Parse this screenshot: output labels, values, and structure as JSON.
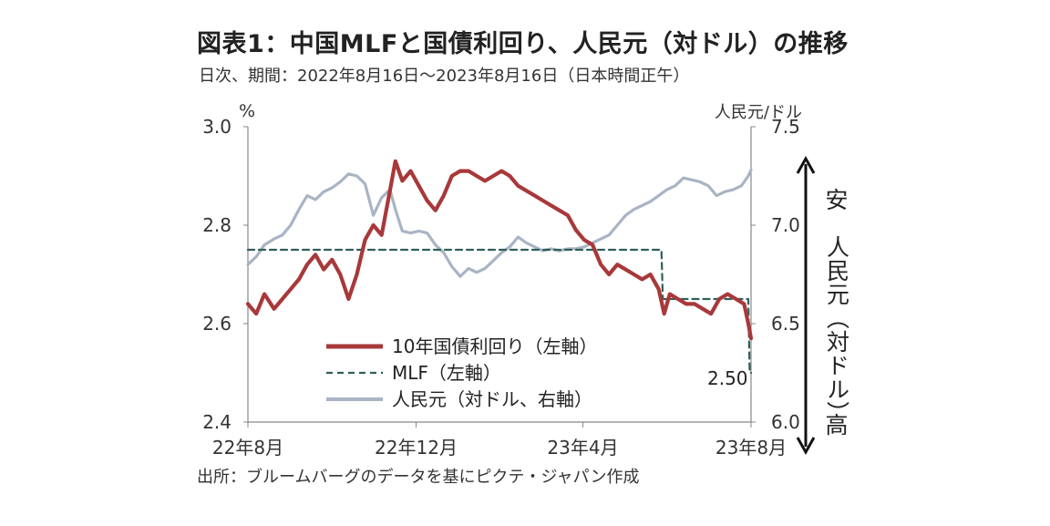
{
  "title": "図表1：中国MLFと国債利回り、人民元（対ドル）の推移",
  "subtitle": "日次、期間：2022年8月16日～2023年8月16日（日本時間正午）",
  "source": "出所：ブルームバーグのデータを基にピクテ・ジャパン作成",
  "colors": {
    "yield": "#a8383a",
    "mlf": "#2f5f5a",
    "cny": "#a9b4c4",
    "axis": "#888888"
  },
  "chart_data": {
    "type": "line",
    "left_axis": {
      "unit": "%",
      "min": 2.4,
      "max": 3.0,
      "ticks": [
        "2.4",
        "2.6",
        "2.8",
        "3.0"
      ]
    },
    "right_axis": {
      "unit": "人民元/ドル",
      "min": 6.0,
      "max": 7.5,
      "ticks": [
        "6.0",
        "6.5",
        "7.0",
        "7.5"
      ]
    },
    "x_ticks": [
      "22年8月",
      "22年12月",
      "23年4月",
      "23年8月"
    ],
    "x_range": [
      "2022-08-16",
      "2023-08-16"
    ],
    "x_tick_dates": [
      "2022-08-16",
      "2022-12-16",
      "2023-04-16",
      "2023-08-16"
    ],
    "right_note": {
      "top": "安",
      "bottom": "高",
      "middle": "人民元（対ドル）"
    },
    "end_label": "2.50",
    "legend": [
      "10年国債利回り（左軸）",
      "MLF（左軸）",
      "人民元（対ドル、右軸）"
    ],
    "series": [
      {
        "name": "10年国債利回り（左軸）",
        "axis": "left",
        "style": "solid",
        "points": [
          [
            "2022-08-16",
            2.64
          ],
          [
            "2022-08-22",
            2.62
          ],
          [
            "2022-08-28",
            2.66
          ],
          [
            "2022-09-04",
            2.63
          ],
          [
            "2022-09-10",
            2.65
          ],
          [
            "2022-09-16",
            2.67
          ],
          [
            "2022-09-22",
            2.69
          ],
          [
            "2022-09-28",
            2.72
          ],
          [
            "2022-10-04",
            2.74
          ],
          [
            "2022-10-10",
            2.71
          ],
          [
            "2022-10-16",
            2.73
          ],
          [
            "2022-10-22",
            2.7
          ],
          [
            "2022-10-28",
            2.65
          ],
          [
            "2022-11-03",
            2.7
          ],
          [
            "2022-11-09",
            2.77
          ],
          [
            "2022-11-15",
            2.8
          ],
          [
            "2022-11-21",
            2.78
          ],
          [
            "2022-11-27",
            2.87
          ],
          [
            "2022-12-01",
            2.93
          ],
          [
            "2022-12-06",
            2.89
          ],
          [
            "2022-12-12",
            2.91
          ],
          [
            "2022-12-18",
            2.88
          ],
          [
            "2022-12-24",
            2.85
          ],
          [
            "2022-12-30",
            2.83
          ],
          [
            "2023-01-05",
            2.86
          ],
          [
            "2023-01-11",
            2.9
          ],
          [
            "2023-01-17",
            2.91
          ],
          [
            "2023-01-23",
            2.91
          ],
          [
            "2023-01-29",
            2.9
          ],
          [
            "2023-02-04",
            2.89
          ],
          [
            "2023-02-10",
            2.9
          ],
          [
            "2023-02-16",
            2.91
          ],
          [
            "2023-02-22",
            2.9
          ],
          [
            "2023-02-28",
            2.88
          ],
          [
            "2023-03-06",
            2.87
          ],
          [
            "2023-03-12",
            2.86
          ],
          [
            "2023-03-18",
            2.85
          ],
          [
            "2023-03-24",
            2.84
          ],
          [
            "2023-03-30",
            2.83
          ],
          [
            "2023-04-05",
            2.82
          ],
          [
            "2023-04-11",
            2.79
          ],
          [
            "2023-04-17",
            2.77
          ],
          [
            "2023-04-23",
            2.76
          ],
          [
            "2023-04-29",
            2.72
          ],
          [
            "2023-05-05",
            2.7
          ],
          [
            "2023-05-11",
            2.72
          ],
          [
            "2023-05-17",
            2.71
          ],
          [
            "2023-05-23",
            2.7
          ],
          [
            "2023-05-29",
            2.69
          ],
          [
            "2023-06-04",
            2.7
          ],
          [
            "2023-06-10",
            2.67
          ],
          [
            "2023-06-14",
            2.62
          ],
          [
            "2023-06-18",
            2.66
          ],
          [
            "2023-06-24",
            2.65
          ],
          [
            "2023-06-30",
            2.64
          ],
          [
            "2023-07-06",
            2.64
          ],
          [
            "2023-07-12",
            2.63
          ],
          [
            "2023-07-18",
            2.62
          ],
          [
            "2023-07-24",
            2.65
          ],
          [
            "2023-07-30",
            2.66
          ],
          [
            "2023-08-05",
            2.65
          ],
          [
            "2023-08-11",
            2.64
          ],
          [
            "2023-08-14",
            2.6
          ],
          [
            "2023-08-16",
            2.57
          ]
        ]
      },
      {
        "name": "MLF（左軸）",
        "axis": "left",
        "style": "dashed",
        "points": [
          [
            "2022-08-16",
            2.75
          ],
          [
            "2023-06-12",
            2.75
          ],
          [
            "2023-06-13",
            2.65
          ],
          [
            "2023-08-14",
            2.65
          ],
          [
            "2023-08-15",
            2.5
          ],
          [
            "2023-08-16",
            2.5
          ]
        ]
      },
      {
        "name": "人民元（対ドル、右軸）",
        "axis": "right",
        "style": "solid",
        "points": [
          [
            "2022-08-16",
            6.8
          ],
          [
            "2022-08-22",
            6.84
          ],
          [
            "2022-08-28",
            6.9
          ],
          [
            "2022-09-04",
            6.93
          ],
          [
            "2022-09-10",
            6.95
          ],
          [
            "2022-09-16",
            7.0
          ],
          [
            "2022-09-22",
            7.08
          ],
          [
            "2022-09-28",
            7.15
          ],
          [
            "2022-10-04",
            7.13
          ],
          [
            "2022-10-10",
            7.17
          ],
          [
            "2022-10-16",
            7.19
          ],
          [
            "2022-10-22",
            7.22
          ],
          [
            "2022-10-28",
            7.26
          ],
          [
            "2022-11-03",
            7.25
          ],
          [
            "2022-11-09",
            7.21
          ],
          [
            "2022-11-15",
            7.05
          ],
          [
            "2022-11-21",
            7.14
          ],
          [
            "2022-11-27",
            7.18
          ],
          [
            "2022-12-01",
            7.08
          ],
          [
            "2022-12-06",
            6.97
          ],
          [
            "2022-12-12",
            6.96
          ],
          [
            "2022-12-18",
            6.97
          ],
          [
            "2022-12-24",
            6.96
          ],
          [
            "2022-12-30",
            6.9
          ],
          [
            "2023-01-05",
            6.86
          ],
          [
            "2023-01-11",
            6.79
          ],
          [
            "2023-01-17",
            6.74
          ],
          [
            "2023-01-23",
            6.78
          ],
          [
            "2023-01-29",
            6.76
          ],
          [
            "2023-02-04",
            6.78
          ],
          [
            "2023-02-10",
            6.82
          ],
          [
            "2023-02-16",
            6.86
          ],
          [
            "2023-02-22",
            6.89
          ],
          [
            "2023-02-28",
            6.94
          ],
          [
            "2023-03-06",
            6.91
          ],
          [
            "2023-03-12",
            6.89
          ],
          [
            "2023-03-18",
            6.87
          ],
          [
            "2023-03-24",
            6.88
          ],
          [
            "2023-03-30",
            6.87
          ],
          [
            "2023-04-05",
            6.88
          ],
          [
            "2023-04-11",
            6.88
          ],
          [
            "2023-04-17",
            6.89
          ],
          [
            "2023-04-23",
            6.91
          ],
          [
            "2023-04-29",
            6.93
          ],
          [
            "2023-05-05",
            6.95
          ],
          [
            "2023-05-11",
            7.0
          ],
          [
            "2023-05-17",
            7.05
          ],
          [
            "2023-05-23",
            7.08
          ],
          [
            "2023-05-29",
            7.1
          ],
          [
            "2023-06-04",
            7.12
          ],
          [
            "2023-06-10",
            7.15
          ],
          [
            "2023-06-16",
            7.18
          ],
          [
            "2023-06-22",
            7.2
          ],
          [
            "2023-06-28",
            7.24
          ],
          [
            "2023-07-04",
            7.23
          ],
          [
            "2023-07-10",
            7.22
          ],
          [
            "2023-07-16",
            7.2
          ],
          [
            "2023-07-22",
            7.15
          ],
          [
            "2023-07-28",
            7.17
          ],
          [
            "2023-08-03",
            7.18
          ],
          [
            "2023-08-09",
            7.2
          ],
          [
            "2023-08-14",
            7.25
          ],
          [
            "2023-08-16",
            7.28
          ]
        ]
      }
    ]
  }
}
